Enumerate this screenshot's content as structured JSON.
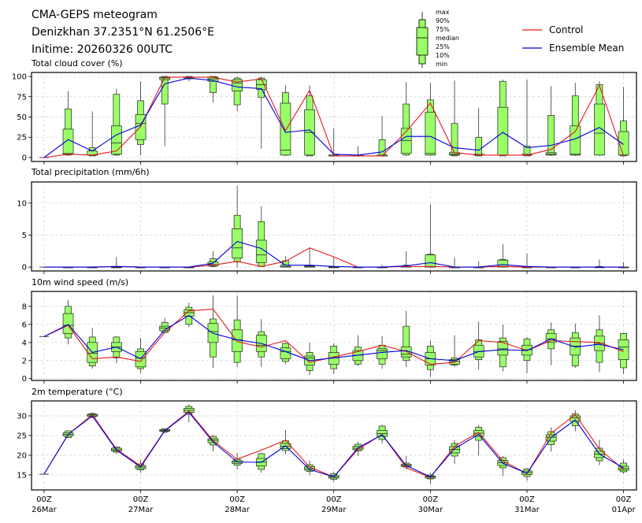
{
  "header": {
    "title": "CMA-GEPS meteogram",
    "location": "Denizkhan 37.2351°N 61.2506°E",
    "initime": "Initime: 20260326 00UTC"
  },
  "legend": {
    "box_labels": [
      "max",
      "90%",
      "75%",
      "median",
      "25%",
      "10%",
      "min"
    ],
    "control": "Control",
    "mean": "Ensemble Mean"
  },
  "colors": {
    "control": "#e41a1c",
    "mean": "#0000dd",
    "box_fill": "#99ff66",
    "grid": "#d0d0d0"
  },
  "x_axis": {
    "ticks": [
      {
        "hour": "00Z",
        "day": "26Mar",
        "step": 0
      },
      {
        "hour": "00Z",
        "day": "27Mar",
        "step": 4
      },
      {
        "hour": "00Z",
        "day": "28Mar",
        "step": 8
      },
      {
        "hour": "00Z",
        "day": "29Mar",
        "step": 12
      },
      {
        "hour": "00Z",
        "day": "30Mar",
        "step": 16
      },
      {
        "hour": "00Z",
        "day": "31Mar",
        "step": 20
      },
      {
        "hour": "00Z",
        "day": "01Apr",
        "step": 24
      }
    ],
    "step_hours": 6
  },
  "chart_data": [
    {
      "type": "box",
      "title": "Total cloud cover (%)",
      "ylim": [
        -4.9,
        104.9
      ],
      "yticks": [
        0,
        25,
        50,
        75,
        100
      ],
      "control": [
        0,
        4,
        3,
        8,
        38,
        99,
        99,
        99,
        93,
        97,
        33,
        83,
        2,
        2,
        2,
        32,
        67,
        6,
        3,
        3,
        3,
        10,
        32,
        89,
        2
      ],
      "mean": [
        0,
        22,
        8,
        28,
        40,
        91,
        98,
        95,
        87,
        85,
        31,
        34,
        4,
        3,
        7,
        26,
        26,
        12,
        9,
        31,
        12,
        15,
        23,
        37,
        16
      ],
      "boxes_note": "each box = [min, p10, p25, median, p75, p90, max], index 1..24",
      "boxes": [
        null,
        [
          2,
          3,
          4,
          5,
          35,
          60,
          82
        ],
        [
          2,
          2,
          3,
          3,
          8,
          12,
          57
        ],
        [
          2,
          3,
          4,
          18,
          39,
          78,
          85
        ],
        [
          3,
          16,
          22,
          42,
          53,
          70,
          94
        ],
        [
          14,
          66,
          96,
          98,
          99,
          100,
          100
        ],
        [
          94,
          97,
          98,
          99,
          99,
          100,
          100
        ],
        [
          68,
          80,
          94,
          97,
          99,
          100,
          100
        ],
        [
          57,
          65,
          82,
          92,
          96,
          98,
          100
        ],
        [
          11,
          74,
          84,
          90,
          96,
          98,
          100
        ],
        [
          2,
          3,
          3,
          9,
          67,
          80,
          89
        ],
        [
          2,
          2,
          3,
          31,
          59,
          76,
          89
        ],
        [
          1,
          2,
          2,
          2,
          3,
          3,
          36
        ],
        [
          1,
          2,
          2,
          2,
          3,
          3,
          14
        ],
        [
          1,
          2,
          2,
          2,
          3,
          22,
          51
        ],
        [
          2,
          3,
          5,
          21,
          36,
          66,
          93
        ],
        [
          2,
          3,
          3,
          5,
          56,
          71,
          92
        ],
        [
          2,
          2,
          3,
          4,
          6,
          42,
          95
        ],
        [
          2,
          2,
          3,
          3,
          4,
          25,
          61
        ],
        [
          2,
          2,
          3,
          3,
          62,
          94,
          96
        ],
        [
          2,
          2,
          3,
          3,
          4,
          14,
          96
        ],
        [
          2,
          3,
          3,
          4,
          6,
          52,
          88
        ],
        [
          2,
          3,
          3,
          4,
          39,
          76,
          92
        ],
        [
          2,
          3,
          3,
          30,
          66,
          90,
          94
        ],
        [
          1,
          2,
          3,
          3,
          32,
          45,
          87
        ]
      ]
    },
    {
      "type": "box",
      "title": "Total precipitation (mm/6h)",
      "ylim": [
        -0.6,
        13.3
      ],
      "yticks": [
        0,
        5,
        10
      ],
      "control": [
        0,
        0,
        0,
        0.1,
        0,
        0,
        0,
        0.3,
        0.9,
        0.1,
        0.9,
        3.0,
        1.6,
        0,
        0,
        0.1,
        0.1,
        0,
        0,
        0.1,
        0,
        0,
        0,
        0,
        0
      ],
      "mean": [
        0,
        0,
        0,
        0.1,
        0,
        0,
        0,
        0.6,
        4.0,
        2.9,
        0.3,
        0.3,
        0.1,
        0,
        0,
        0.2,
        0.7,
        0,
        0,
        0.4,
        0.1,
        0,
        0,
        0,
        0
      ],
      "boxes": [
        null,
        [
          0,
          0,
          0,
          0,
          0,
          0,
          0
        ],
        [
          0,
          0,
          0,
          0,
          0,
          0,
          0.1
        ],
        [
          0,
          0,
          0,
          0,
          0,
          0,
          1.6
        ],
        [
          0,
          0,
          0,
          0,
          0,
          0,
          0
        ],
        [
          0,
          0,
          0,
          0,
          0,
          0,
          0
        ],
        [
          0,
          0,
          0,
          0,
          0,
          0,
          0
        ],
        [
          0,
          0.1,
          0.2,
          0.4,
          0.8,
          1.3,
          2.5
        ],
        [
          0,
          0.8,
          1.4,
          3.0,
          6.0,
          8.1,
          12.7
        ],
        [
          0,
          0.1,
          0.7,
          1.9,
          4.2,
          7.1,
          9.5
        ],
        [
          0,
          0,
          0,
          0.1,
          0.3,
          1.0,
          1.7
        ],
        [
          0,
          0,
          0,
          0.1,
          0.2,
          0.3,
          2.9
        ],
        [
          0,
          0,
          0,
          0,
          0,
          0.1,
          1.6
        ],
        [
          0,
          0,
          0,
          0,
          0,
          0,
          0
        ],
        [
          0,
          0,
          0,
          0,
          0,
          0,
          0.4
        ],
        [
          0,
          0,
          0,
          0,
          0.1,
          0.3,
          2.5
        ],
        [
          0,
          0,
          0,
          0,
          1.9,
          2.0,
          9.8
        ],
        [
          0,
          0,
          0,
          0,
          0,
          0,
          1.5
        ],
        [
          0,
          0,
          0,
          0,
          0,
          0,
          0.9
        ],
        [
          0,
          0,
          0,
          0.1,
          1.1,
          1.2,
          3.6
        ],
        [
          0,
          0,
          0,
          0,
          0,
          0,
          2.1
        ],
        [
          0,
          0,
          0,
          0,
          0,
          0,
          0
        ],
        [
          0,
          0,
          0,
          0,
          0,
          0,
          0
        ],
        [
          0,
          0,
          0,
          0,
          0,
          0.1,
          1.2
        ],
        [
          0,
          0,
          0,
          0,
          0,
          0,
          0.8
        ]
      ]
    },
    {
      "type": "box",
      "title": "10m wind speed (m/s)",
      "ylim": [
        -0.2,
        9.65
      ],
      "yticks": [
        0,
        2,
        4,
        6,
        8
      ],
      "control": [
        4.65,
        5.9,
        2.2,
        2.4,
        1.9,
        5.1,
        7.5,
        7.7,
        4.1,
        3.5,
        4.2,
        1.8,
        2.4,
        3.0,
        3.7,
        3.0,
        1.6,
        1.8,
        4.2,
        4.0,
        3.1,
        4.2,
        4.1,
        4.0,
        3.0
      ],
      "mean": [
        4.65,
        6.0,
        2.9,
        3.5,
        2.2,
        5.4,
        7.0,
        5.0,
        4.3,
        3.9,
        3.0,
        2.0,
        2.3,
        2.6,
        2.9,
        3.1,
        2.2,
        2.0,
        3.0,
        3.2,
        3.1,
        4.4,
        3.5,
        3.8,
        3.2
      ],
      "boxes": [
        null,
        [
          3.8,
          4.5,
          5.0,
          5.9,
          7.2,
          8.0,
          8.7
        ],
        [
          1.1,
          1.4,
          1.8,
          2.8,
          4.0,
          4.6,
          5.6
        ],
        [
          1.7,
          2.3,
          3.0,
          3.5,
          4.0,
          4.6,
          4.7
        ],
        [
          0.6,
          1.1,
          1.3,
          2.3,
          3.0,
          3.3,
          4.5
        ],
        [
          5.0,
          5.1,
          5.3,
          5.6,
          5.8,
          6.2,
          6.7
        ],
        [
          5.7,
          6.0,
          6.9,
          7.3,
          7.6,
          7.9,
          8.4
        ],
        [
          1.2,
          2.4,
          4.0,
          5.2,
          6.1,
          6.6,
          9.2
        ],
        [
          1.3,
          1.8,
          3.0,
          4.3,
          5.4,
          6.5,
          9.2
        ],
        [
          1.3,
          2.4,
          3.0,
          3.7,
          4.8,
          5.2,
          6.6
        ],
        [
          1.6,
          1.9,
          2.2,
          3.0,
          3.4,
          3.9,
          4.0
        ],
        [
          0.4,
          0.9,
          1.5,
          2.3,
          2.5,
          2.9,
          4.0
        ],
        [
          0.5,
          1.1,
          1.6,
          2.3,
          2.9,
          3.6,
          3.9
        ],
        [
          1.4,
          1.6,
          2.0,
          2.6,
          3.1,
          3.5,
          4.8
        ],
        [
          1.1,
          1.6,
          2.2,
          3.1,
          3.3,
          3.7,
          4.7
        ],
        [
          1.3,
          2.0,
          2.4,
          2.7,
          3.5,
          5.8,
          7.5
        ],
        [
          0.2,
          1.0,
          1.5,
          2.2,
          2.9,
          3.6,
          4.2
        ],
        [
          1.3,
          1.5,
          1.6,
          1.9,
          2.1,
          2.3,
          4.8
        ],
        [
          1.0,
          2.1,
          2.4,
          3.0,
          3.7,
          4.3,
          6.3
        ],
        [
          0.8,
          1.3,
          2.6,
          3.3,
          4.1,
          4.5,
          6.0
        ],
        [
          0.6,
          2.0,
          2.6,
          3.2,
          3.7,
          4.4,
          4.6
        ],
        [
          1.5,
          3.3,
          4.0,
          4.4,
          5.0,
          5.4,
          6.2
        ],
        [
          1.2,
          1.4,
          2.6,
          3.6,
          4.5,
          5.1,
          6.1
        ],
        [
          0.7,
          1.8,
          3.1,
          3.9,
          4.7,
          5.4,
          7.0
        ],
        [
          0.5,
          1.2,
          2.1,
          3.5,
          4.3,
          5.0,
          5.1
        ]
      ]
    },
    {
      "type": "box",
      "title": "2m temperature (°C)",
      "ylim": [
        11.2,
        33.8
      ],
      "yticks": [
        15,
        20,
        25,
        30
      ],
      "control": [
        15.2,
        25.3,
        30.3,
        21.5,
        17.3,
        26.3,
        31.2,
        23.7,
        19.0,
        21.3,
        23.8,
        17.0,
        14.5,
        21.5,
        25.3,
        16.8,
        14.4,
        22.3,
        25.8,
        18.6,
        15.3,
        25.6,
        30.3,
        21.6,
        16.4
      ],
      "mean": [
        15.2,
        25.3,
        30.0,
        21.3,
        17.0,
        26.2,
        30.9,
        23.4,
        18.3,
        18.2,
        22.4,
        16.4,
        14.5,
        21.9,
        25.2,
        17.4,
        14.5,
        21.7,
        25.3,
        18.0,
        15.4,
        24.5,
        29.0,
        20.3,
        16.8
      ],
      "boxes": [
        null,
        [
          24.3,
          24.5,
          24.9,
          25.3,
          25.7,
          26.2,
          26.3
        ],
        [
          29.4,
          29.6,
          29.9,
          30.2,
          30.4,
          30.6,
          30.8
        ],
        [
          20.3,
          20.8,
          21.1,
          21.4,
          21.8,
          22.1,
          22.3
        ],
        [
          15.6,
          16.3,
          16.6,
          17.0,
          17.4,
          17.8,
          18.8
        ],
        [
          25.6,
          25.9,
          26.1,
          26.3,
          26.5,
          26.7,
          26.9
        ],
        [
          28.4,
          30.4,
          30.9,
          31.4,
          31.9,
          32.4,
          32.9
        ],
        [
          21.0,
          22.6,
          23.2,
          23.8,
          24.2,
          24.8,
          25.2
        ],
        [
          16.3,
          17.5,
          17.9,
          18.3,
          18.6,
          19.0,
          20.6
        ],
        [
          15.6,
          16.4,
          17.3,
          18.3,
          19.2,
          20.4,
          20.6
        ],
        [
          20.3,
          21.2,
          21.7,
          22.3,
          23.0,
          23.7,
          26.4
        ],
        [
          14.9,
          15.9,
          16.2,
          16.6,
          17.1,
          17.6,
          18.7
        ],
        [
          13.3,
          13.9,
          14.2,
          14.5,
          14.9,
          15.3,
          15.9
        ],
        [
          19.8,
          21.1,
          21.4,
          21.8,
          22.3,
          22.8,
          23.4
        ],
        [
          23.0,
          24.0,
          24.8,
          25.5,
          26.3,
          27.4,
          27.8
        ],
        [
          16.5,
          17.0,
          17.2,
          17.4,
          17.7,
          18.0,
          19.8
        ],
        [
          12.6,
          14.0,
          14.2,
          14.5,
          14.7,
          15.0,
          15.5
        ],
        [
          17.8,
          19.8,
          20.6,
          21.5,
          22.2,
          23.0,
          23.8
        ],
        [
          19.9,
          23.8,
          24.8,
          25.6,
          26.3,
          27.1,
          27.7
        ],
        [
          14.7,
          16.8,
          17.4,
          18.1,
          18.7,
          19.4,
          19.8
        ],
        [
          13.5,
          14.6,
          15.1,
          15.6,
          16.0,
          16.5,
          16.8
        ],
        [
          20.9,
          22.7,
          23.6,
          24.6,
          25.2,
          26.0,
          27.1
        ],
        [
          26.1,
          27.5,
          28.6,
          29.5,
          30.0,
          30.5,
          31.4
        ],
        [
          17.5,
          18.6,
          19.4,
          20.3,
          21.0,
          21.8,
          23.9
        ],
        [
          15.3,
          15.8,
          16.2,
          16.6,
          17.2,
          18.0,
          19.0
        ]
      ]
    }
  ]
}
